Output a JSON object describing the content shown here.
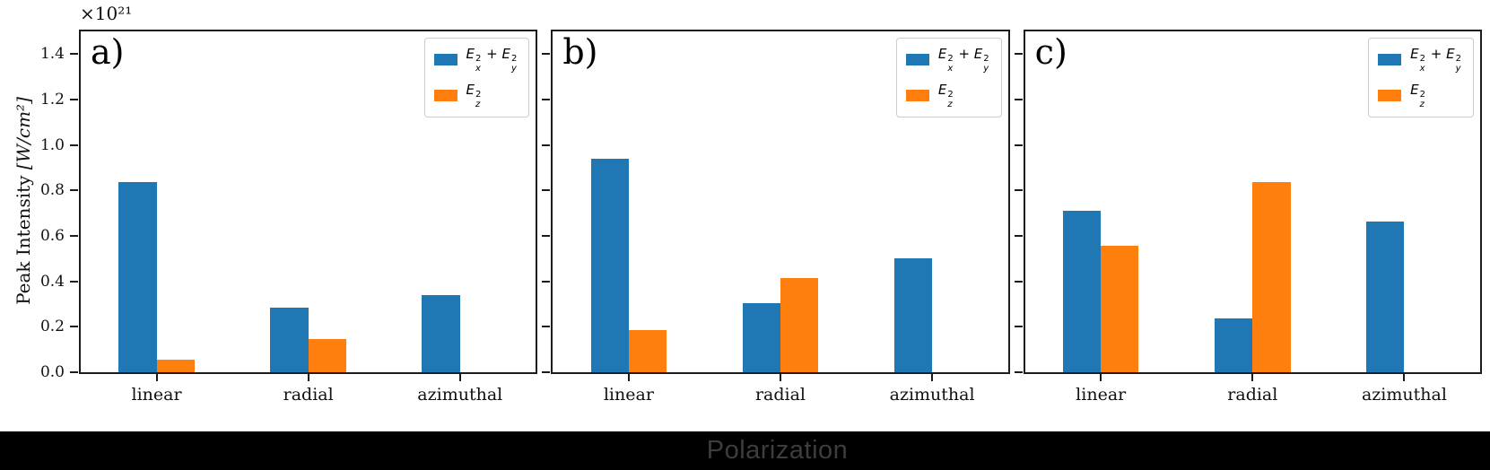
{
  "figure": {
    "offset_label": "×10²¹",
    "ylabel_text": "Peak Intensity",
    "ylabel_units": "[W/cm²]",
    "background": "#ffffff",
    "axis_color": "#1c1c1c",
    "footer": {
      "label": "Polarization",
      "background": "#000000",
      "text_color": "#3d3d3d"
    },
    "series_colors": {
      "blue": "#1f77b4",
      "orange": "#ff7f0e"
    }
  },
  "chart_data": [
    {
      "type": "bar",
      "panel_label": "a)",
      "categories": [
        "linear",
        "radial",
        "azimuthal"
      ],
      "series": [
        {
          "name": "E_x^2 + E_y^2",
          "color": "#1f77b4",
          "values": [
            0.835,
            0.285,
            0.34
          ]
        },
        {
          "name": "E_z^2",
          "color": "#ff7f0e",
          "values": [
            0.055,
            0.145,
            0.0
          ]
        }
      ],
      "ylabel": "Peak Intensity [W/cm²]",
      "y_offset_label": "×10²¹",
      "ylim": [
        0,
        1.5
      ],
      "yticks": [
        "0.0",
        "0.2",
        "0.4",
        "0.6",
        "0.8",
        "1.0",
        "1.2",
        "1.4"
      ],
      "show_ytick_labels": true,
      "grid": false,
      "legend_position": "upper right",
      "bar_width_data_units": 0.25
    },
    {
      "type": "bar",
      "panel_label": "b)",
      "categories": [
        "linear",
        "radial",
        "azimuthal"
      ],
      "series": [
        {
          "name": "E_x^2 + E_y^2",
          "color": "#1f77b4",
          "values": [
            0.94,
            0.305,
            0.5
          ]
        },
        {
          "name": "E_z^2",
          "color": "#ff7f0e",
          "values": [
            0.185,
            0.415,
            0.0
          ]
        }
      ],
      "ylabel": "",
      "ylim": [
        0,
        1.5
      ],
      "yticks": [
        "0.0",
        "0.2",
        "0.4",
        "0.6",
        "0.8",
        "1.0",
        "1.2",
        "1.4"
      ],
      "show_ytick_labels": false,
      "grid": false,
      "legend_position": "upper right",
      "bar_width_data_units": 0.25
    },
    {
      "type": "bar",
      "panel_label": "c)",
      "categories": [
        "linear",
        "radial",
        "azimuthal"
      ],
      "series": [
        {
          "name": "E_x^2 + E_y^2",
          "color": "#1f77b4",
          "values": [
            0.71,
            0.235,
            0.665
          ]
        },
        {
          "name": "E_z^2",
          "color": "#ff7f0e",
          "values": [
            0.555,
            0.835,
            0.0
          ]
        }
      ],
      "ylabel": "",
      "ylim": [
        0,
        1.5
      ],
      "yticks": [
        "0.0",
        "0.2",
        "0.4",
        "0.6",
        "0.8",
        "1.0",
        "1.2",
        "1.4"
      ],
      "show_ytick_labels": false,
      "grid": false,
      "legend_position": "upper right",
      "bar_width_data_units": 0.25
    }
  ]
}
